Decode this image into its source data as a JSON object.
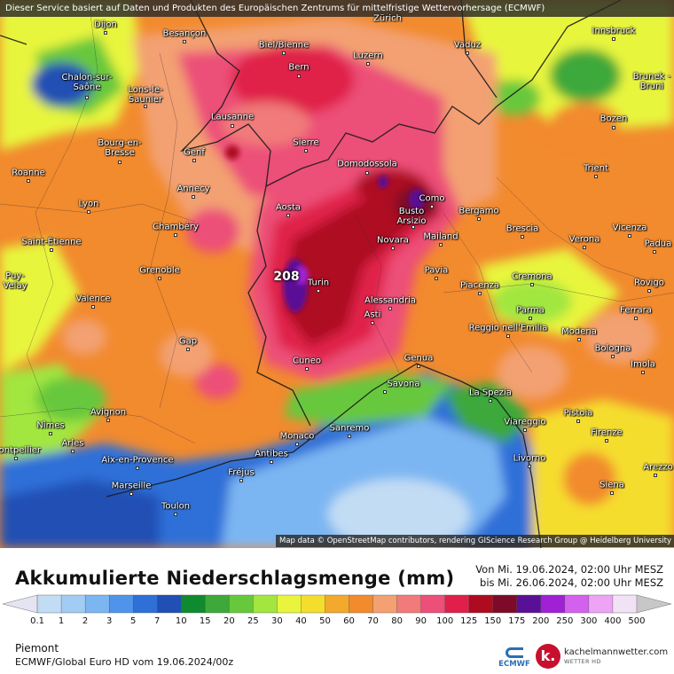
{
  "banner": "Dieser Service basiert auf Daten und Produkten des Europäischen Zentrums für mittelfristige Wettervorhersage (ECMWF)",
  "attribution": "Map data © OpenStreetMap contributors, rendering GIScience Research Group @ Heidelberg University",
  "max_value": "208",
  "cities": [
    "Dijon",
    "Besançon",
    "Zürich",
    "Vaduz",
    "Innsbruck",
    "Biel/Bienne",
    "Luzern",
    "Bern",
    "Chalon-sur-Saône",
    "Lons-le-Saunier",
    "Brunek - Bruni",
    "Lausanne",
    "Bozen",
    "Sierre",
    "Bourg-en-Bresse",
    "Genf",
    "Domodossola",
    "Trient",
    "Roanne",
    "Annecy",
    "Como",
    "Lyon",
    "Aosta",
    "Busto Arsizio",
    "Bergamo",
    "Mailand",
    "Chambéry",
    "Novara",
    "Brescia",
    "Vicenza",
    "Saint-Étienne",
    "Verona",
    "Padua",
    "Grenoble",
    "Pavia",
    "Turin",
    "Piacenza",
    "Cremona",
    "Puy-Velay",
    "Valence",
    "Alessandria",
    "Parma",
    "Rovigo",
    "Asti",
    "Ferrara",
    "Reggio nell'Emilia",
    "Modena",
    "Gap",
    "Bologna",
    "Cuneo",
    "Genua",
    "Imola",
    "Savona",
    "La Spezia",
    "Avignon",
    "Nîmes",
    "Pistoia",
    "Viareggio",
    "Arles",
    "Sanremo",
    "Firenze",
    "Monaco",
    "Antibes",
    "Aix-en-Provence",
    "Montpellier",
    "Livorno",
    "Fréjus",
    "Arezzo",
    "Marseille",
    "Siena",
    "Toulon"
  ],
  "legend": {
    "title": "Akkumulierte Niederschlagsmenge (mm)",
    "from": "Von Mi. 19.06.2024, 02:00 Uhr MESZ",
    "to": "bis Mi. 26.06.2024, 02:00 Uhr MESZ",
    "ticks": [
      "0.1",
      "1",
      "2",
      "3",
      "5",
      "7",
      "10",
      "15",
      "20",
      "25",
      "30",
      "40",
      "50",
      "60",
      "70",
      "80",
      "90",
      "100",
      "125",
      "150",
      "175",
      "200",
      "250",
      "300",
      "400",
      "500"
    ],
    "colors": [
      "#e4e4f2",
      "#c2dcf4",
      "#a2ccf4",
      "#7cb6f2",
      "#4f94ea",
      "#2e6fd8",
      "#2150b4",
      "#0f8a2e",
      "#3ea83a",
      "#67c83c",
      "#a2e63f",
      "#e8f53c",
      "#f5dd2e",
      "#f3a92c",
      "#f28a2e",
      "#f3a072",
      "#f17a7a",
      "#ec4f78",
      "#e0204a",
      "#ae0a20",
      "#7d0a28",
      "#5a1096",
      "#a020d6",
      "#d460ee",
      "#eda4f4",
      "#f2e2f6",
      "#c7c7c7"
    ]
  },
  "region": "Piemont",
  "model": "ECMWF/Global Euro HD vom  19.06.2024/00z",
  "logos": {
    "ecmwf": "ECMWF",
    "kachel_name": "kachelmannwetter.com",
    "kachel_sub": "WETTER HD",
    "kachel_icon": "k."
  }
}
